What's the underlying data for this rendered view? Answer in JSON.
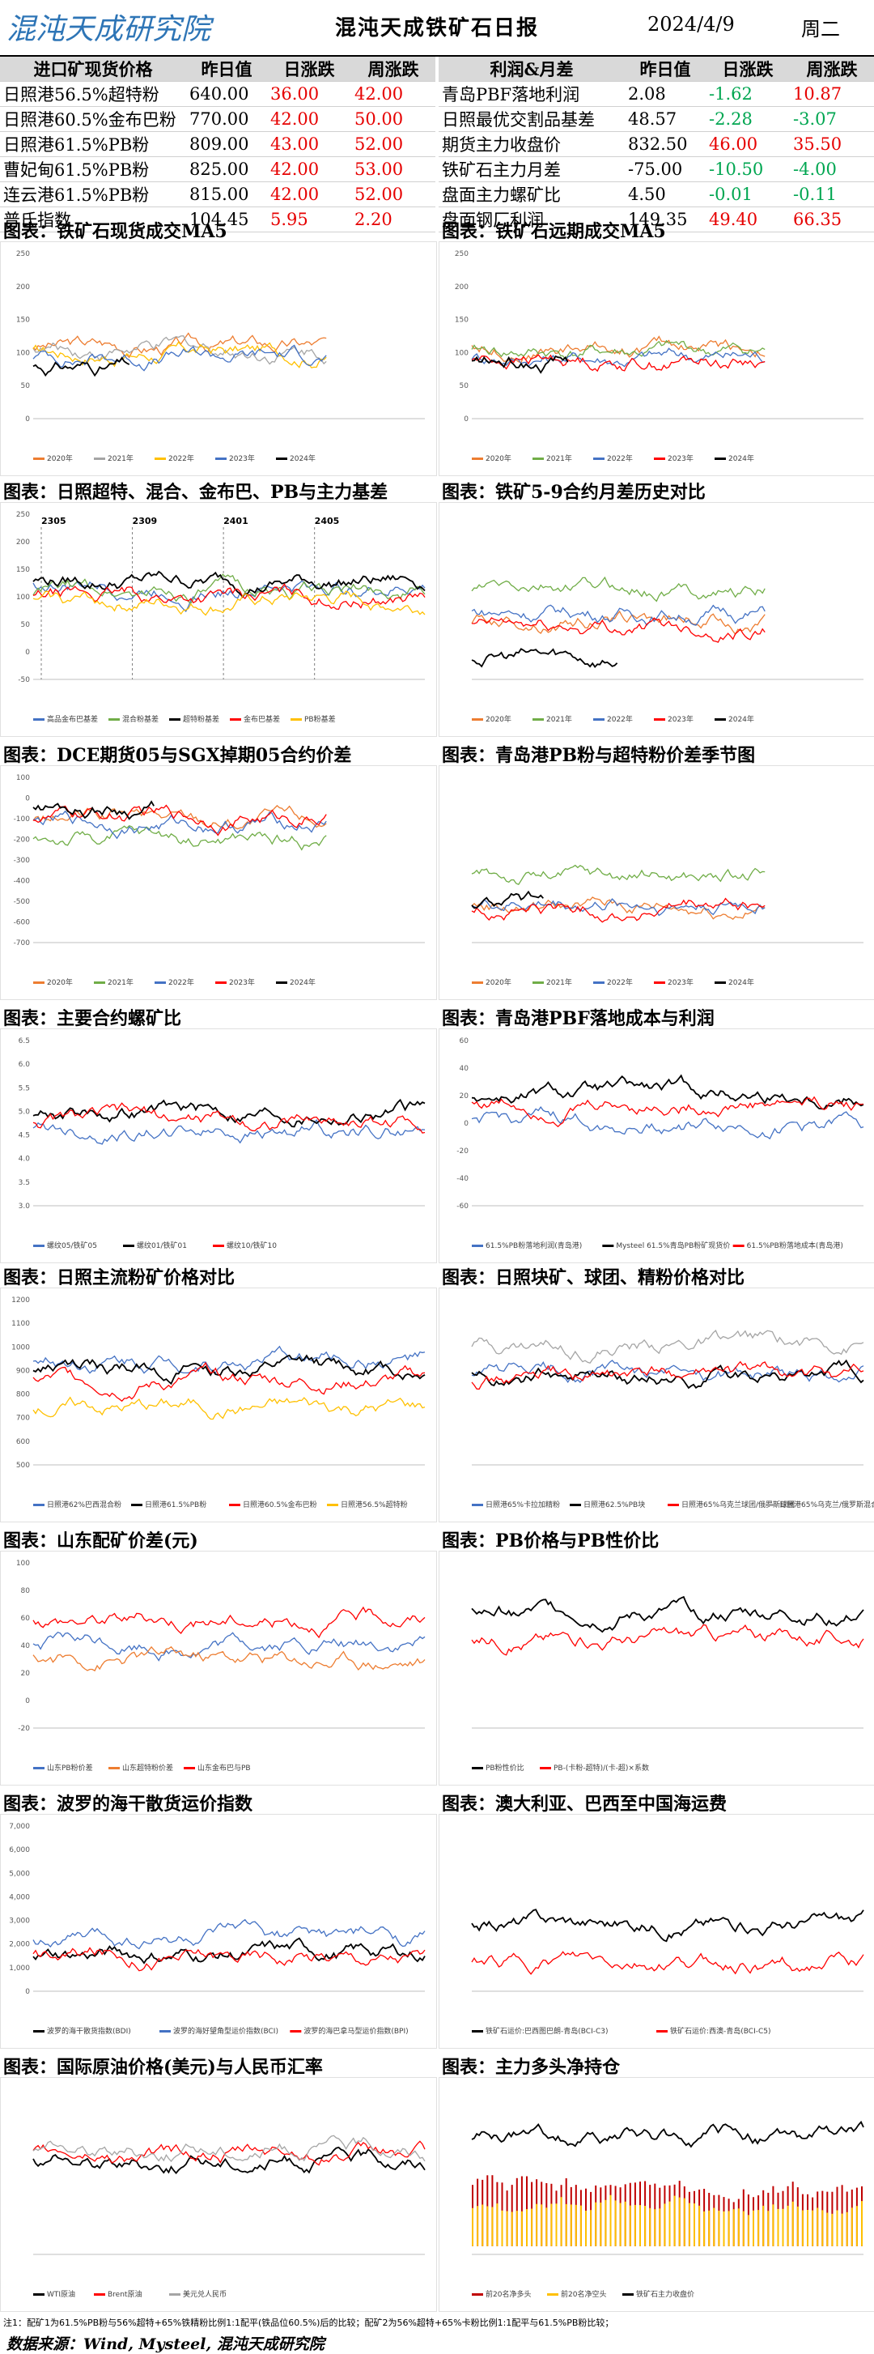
{
  "header": {
    "logo_text": "混沌天成研究院",
    "title": "混沌天成铁矿石日报",
    "date": "2024/4/9",
    "weekday": "周二"
  },
  "colors": {
    "up": "#e60000",
    "down": "#00a651",
    "header_bg": "#d9d9d9"
  },
  "left_table": {
    "headers": [
      "进口矿现货价格",
      "昨日值",
      "日涨跌",
      "周涨跌"
    ],
    "rows": [
      {
        "name": "日照港56.5%超特粉",
        "value": "640.00",
        "day": "36.00",
        "week": "42.00",
        "day_dir": "up",
        "week_dir": "up"
      },
      {
        "name": "日照港60.5%金布巴粉",
        "value": "770.00",
        "day": "42.00",
        "week": "50.00",
        "day_dir": "up",
        "week_dir": "up"
      },
      {
        "name": "日照港61.5%PB粉",
        "value": "809.00",
        "day": "43.00",
        "week": "52.00",
        "day_dir": "up",
        "week_dir": "up"
      },
      {
        "name": "曹妃甸61.5%PB粉",
        "value": "825.00",
        "day": "42.00",
        "week": "53.00",
        "day_dir": "up",
        "week_dir": "up"
      },
      {
        "name": "连云港61.5%PB粉",
        "value": "815.00",
        "day": "42.00",
        "week": "52.00",
        "day_dir": "up",
        "week_dir": "up"
      },
      {
        "name": "普氏指数",
        "value": "104.45",
        "day": "5.95",
        "week": "2.20",
        "day_dir": "up",
        "week_dir": "up"
      }
    ]
  },
  "right_table": {
    "headers": [
      "利润&月差",
      "昨日值",
      "日涨跌",
      "周涨跌"
    ],
    "rows": [
      {
        "name": "青岛PBF落地利润",
        "value": "2.08",
        "day": "-1.62",
        "week": "10.87",
        "day_dir": "down",
        "week_dir": "up"
      },
      {
        "name": "日照最优交割品基差",
        "value": "48.57",
        "day": "-2.28",
        "week": "-3.07",
        "day_dir": "down",
        "week_dir": "down"
      },
      {
        "name": "期货主力收盘价",
        "value": "832.50",
        "day": "46.00",
        "week": "35.50",
        "day_dir": "up",
        "week_dir": "up"
      },
      {
        "name": "铁矿石主力月差",
        "value": "-75.00",
        "day": "-10.50",
        "week": "-4.00",
        "day_dir": "down",
        "week_dir": "down"
      },
      {
        "name": "盘面主力螺矿比",
        "value": "4.50",
        "day": "-0.01",
        "week": "-0.11",
        "day_dir": "down",
        "week_dir": "down"
      },
      {
        "name": "盘面钢厂利润",
        "value": "149.35",
        "day": "49.40",
        "week": "66.35",
        "day_dir": "up",
        "week_dir": "up"
      }
    ]
  },
  "sections": [
    {
      "title": "图表：铁矿石现货成交MA5"
    },
    {
      "title": "图表：铁矿石远期成交MA5"
    },
    {
      "title": "图表：日照超特、混合、金布巴、PB与主力基差"
    },
    {
      "title": "图表：铁矿5-9合约月差历史对比"
    },
    {
      "title": "图表：DCE期货05与SGX掉期05合约价差"
    },
    {
      "title": "图表：青岛港PB粉与超特粉价差季节图"
    },
    {
      "title": "图表：主要合约螺矿比"
    },
    {
      "title": "图表：青岛港PBF落地成本与利润"
    },
    {
      "title": "图表：日照主流粉矿价格对比"
    },
    {
      "title": "图表：日照块矿、球团、精粉价格对比"
    },
    {
      "title": "图表：山东配矿价差(元)"
    },
    {
      "title": "图表：PB价格与PB性价比"
    },
    {
      "title": "图表：波罗的海干散货运价指数"
    },
    {
      "title": "图表：澳大利亚、巴西至中国海运费"
    },
    {
      "title": "图表：国际原油价格(美元)与人民币汇率"
    },
    {
      "title": "图表：主力多头净持仓"
    }
  ],
  "chart_data": [
    {
      "id": "c1",
      "type": "line",
      "ylim": [
        0,
        250
      ],
      "yticks": [
        "0",
        "50",
        "100",
        "150",
        "200",
        "250"
      ],
      "series": [
        {
          "name": "2020年",
          "color": "#ed7d31"
        },
        {
          "name": "2021年",
          "color": "#a5a5a5"
        },
        {
          "name": "2022年",
          "color": "#ffc000"
        },
        {
          "name": "2023年",
          "color": "#4472c4"
        },
        {
          "name": "2024年",
          "color": "#000000"
        }
      ],
      "seeds": [
        110,
        105,
        100,
        95,
        80
      ],
      "lens": [
        120,
        120,
        120,
        120,
        40
      ]
    },
    {
      "id": "c2",
      "type": "line",
      "ylim": [
        0,
        250
      ],
      "yticks": [
        "0",
        "50",
        "100",
        "150",
        "200",
        "250"
      ],
      "series": [
        {
          "name": "2020年",
          "color": "#ed7d31"
        },
        {
          "name": "2021年",
          "color": "#70ad47"
        },
        {
          "name": "2022年",
          "color": "#4472c4"
        },
        {
          "name": "2023年",
          "color": "#ff0000"
        },
        {
          "name": "2024年",
          "color": "#000000"
        }
      ],
      "seeds": [
        110,
        100,
        95,
        90,
        85
      ],
      "lens": [
        120,
        120,
        120,
        120,
        40
      ]
    },
    {
      "id": "c3",
      "type": "line",
      "ylim": [
        -50,
        250
      ],
      "yticks": [
        "-50",
        "0",
        "50",
        "100",
        "150",
        "200",
        "250"
      ],
      "annotations": [
        "2305",
        "2309",
        "2401",
        "2405"
      ],
      "series": [
        {
          "name": "高品金布巴基差",
          "color": "#4472c4"
        },
        {
          "name": "混合粉基差",
          "color": "#70ad47"
        },
        {
          "name": "超特粉基差",
          "color": "#000000"
        },
        {
          "name": "金布巴基差",
          "color": "#ff0000"
        },
        {
          "name": "PB粉基差",
          "color": "#ffc000"
        }
      ],
      "seeds": [
        120,
        110,
        130,
        100,
        90
      ],
      "lens": [
        160,
        160,
        160,
        160,
        160
      ]
    },
    {
      "id": "c4",
      "type": "line",
      "ylim": [
        -60,
        160
      ],
      "yticks": [],
      "series": [
        {
          "name": "2020年",
          "color": "#ed7d31"
        },
        {
          "name": "2021年",
          "color": "#70ad47"
        },
        {
          "name": "2022年",
          "color": "#4472c4"
        },
        {
          "name": "2023年",
          "color": "#ff0000"
        },
        {
          "name": "2024年",
          "color": "#000000"
        }
      ],
      "seeds": [
        20,
        60,
        30,
        10,
        -30
      ],
      "lens": [
        120,
        120,
        120,
        120,
        60
      ]
    },
    {
      "id": "c5",
      "type": "line",
      "ylim": [
        -700,
        100
      ],
      "yticks": [
        "100",
        "0",
        "-100",
        "-200",
        "-300",
        "-400",
        "-500",
        "-600",
        "-700"
      ],
      "series": [
        {
          "name": "2020年",
          "color": "#ed7d31"
        },
        {
          "name": "2021年",
          "color": "#70ad47"
        },
        {
          "name": "2022年",
          "color": "#4472c4"
        },
        {
          "name": "2023年",
          "color": "#ff0000"
        },
        {
          "name": "2024年",
          "color": "#000000"
        }
      ],
      "seeds": [
        -100,
        -200,
        -120,
        -90,
        -40
      ],
      "lens": [
        120,
        120,
        120,
        120,
        50
      ]
    },
    {
      "id": "c6",
      "type": "line",
      "ylim": [
        0,
        500
      ],
      "yticks": [],
      "series": [
        {
          "name": "2020年",
          "color": "#ed7d31"
        },
        {
          "name": "2021年",
          "color": "#70ad47"
        },
        {
          "name": "2022年",
          "color": "#4472c4"
        },
        {
          "name": "2023年",
          "color": "#ff0000"
        },
        {
          "name": "2024年",
          "color": "#000000"
        }
      ],
      "seeds": [
        110,
        200,
        120,
        100,
        110
      ],
      "lens": [
        120,
        120,
        120,
        120,
        30
      ]
    },
    {
      "id": "c7",
      "type": "line",
      "ylim": [
        3.0,
        6.5
      ],
      "yticks": [
        "3.0",
        "3.5",
        "4.0",
        "4.5",
        "5.0",
        "5.5",
        "6.0",
        "6.5"
      ],
      "series": [
        {
          "name": "螺纹05/铁矿05",
          "color": "#4472c4"
        },
        {
          "name": "螺纹01/铁矿01",
          "color": "#000000"
        },
        {
          "name": "螺纹10/铁矿10",
          "color": "#ff0000"
        }
      ],
      "seeds": [
        4.6,
        5.0,
        4.8
      ],
      "lens": [
        160,
        160,
        160
      ]
    },
    {
      "id": "c8",
      "type": "line",
      "ylim": [
        -60,
        60
      ],
      "yticks": [
        "60",
        "40",
        "20",
        "0",
        "-20",
        "-40",
        "-60"
      ],
      "series": [
        {
          "name": "61.5%PB粉落地利润(青岛港)",
          "color": "#4472c4"
        },
        {
          "name": "Mysteel 61.5%青岛PB粉矿现货价",
          "color": "#000000"
        },
        {
          "name": "61.5%PB粉落地成本(青岛港)",
          "color": "#ff0000"
        }
      ],
      "seeds": [
        0,
        20,
        15
      ],
      "lens": [
        160,
        160,
        160
      ]
    },
    {
      "id": "c9",
      "type": "line",
      "ylim": [
        500,
        1200
      ],
      "yticks": [
        "500",
        "600",
        "700",
        "800",
        "900",
        "1000",
        "1100",
        "1200"
      ],
      "series": [
        {
          "name": "日照港62%巴西混合粉",
          "color": "#4472c4"
        },
        {
          "name": "日照港61.5%PB粉",
          "color": "#000000"
        },
        {
          "name": "日照港60.5%金布巴粉",
          "color": "#ff0000"
        },
        {
          "name": "日照港56.5%超特粉",
          "color": "#ffc000"
        }
      ],
      "seeds": [
        950,
        900,
        860,
        750
      ],
      "lens": [
        160,
        160,
        160,
        160
      ]
    },
    {
      "id": "c10",
      "type": "line",
      "ylim": [
        500,
        1600
      ],
      "yticks": [],
      "series": [
        {
          "name": "日照港65%卡拉加精粉",
          "color": "#4472c4"
        },
        {
          "name": "日照港62.5%PB块",
          "color": "#000000"
        },
        {
          "name": "日照港65%乌克兰球团/俄罗斯球团",
          "color": "#ff0000"
        },
        {
          "name": "日照港65%乌克兰/俄罗斯混合粉",
          "color": "#a5a5a5"
        }
      ],
      "seeds": [
        1100,
        1100,
        1080,
        1300
      ],
      "lens": [
        160,
        160,
        160,
        160
      ]
    },
    {
      "id": "c11",
      "type": "line",
      "ylim": [
        -20,
        100
      ],
      "yticks": [
        "100",
        "80",
        "60",
        "40",
        "20",
        "0",
        "-20"
      ],
      "series": [
        {
          "name": "山东PB粉价差",
          "color": "#4472c4"
        },
        {
          "name": "山东超特粉价差",
          "color": "#ed7d31"
        },
        {
          "name": "山东金布巴与PB",
          "color": "#ff0000"
        }
      ],
      "seeds": [
        40,
        30,
        60
      ],
      "lens": [
        160,
        160,
        160
      ]
    },
    {
      "id": "c12",
      "type": "line",
      "ylim": [
        0,
        100
      ],
      "yticks": [],
      "series": [
        {
          "name": "PB粉性价比",
          "color": "#000000"
        },
        {
          "name": "PB-(卡粉-超特)/(卡-超)×系数",
          "color": "#ff0000"
        }
      ],
      "seeds": [
        70,
        55
      ],
      "lens": [
        160,
        160
      ]
    },
    {
      "id": "c13",
      "type": "line",
      "ylim": [
        0,
        7000
      ],
      "yticks": [
        "0",
        "1,000",
        "2,000",
        "3,000",
        "4,000",
        "5,000",
        "6,000",
        "7,000"
      ],
      "series": [
        {
          "name": "波罗的海干散货指数(BDI)",
          "color": "#000000"
        },
        {
          "name": "波罗的海好望角型运价指数(BCI)",
          "color": "#4472c4"
        },
        {
          "name": "波罗的海巴拿马型运价指数(BPI)",
          "color": "#ff0000"
        }
      ],
      "seeds": [
        1600,
        2200,
        1500
      ],
      "lens": [
        160,
        160,
        160
      ]
    },
    {
      "id": "c14",
      "type": "line",
      "ylim": [
        0,
        60
      ],
      "yticks": [],
      "series": [
        {
          "name": "铁矿石运价:巴西图巴朗-青岛(BCI-C3)",
          "color": "#000000"
        },
        {
          "name": "铁矿石运价:西澳-青岛(BCI-C5)",
          "color": "#ff0000"
        }
      ],
      "seeds": [
        25,
        10
      ],
      "lens": [
        160,
        160
      ]
    },
    {
      "id": "c15",
      "type": "line",
      "ylim": [
        0,
        140
      ],
      "yticks": [],
      "series": [
        {
          "name": "WTI原油",
          "color": "#000000"
        },
        {
          "name": "Brent原油",
          "color": "#ff0000"
        },
        {
          "name": "美元兑人民币",
          "color": "#a5a5a5"
        }
      ],
      "seeds": [
        80,
        85,
        90
      ],
      "lens": [
        160,
        160,
        160
      ]
    },
    {
      "id": "c16",
      "type": "bar_line",
      "ylim": [
        0,
        100
      ],
      "yticks": [],
      "series": [
        {
          "name": "前20名净多头",
          "color": "#c00000"
        },
        {
          "name": "前20名净空头",
          "color": "#ffc000"
        },
        {
          "name": "铁矿石主力收盘价",
          "color": "#000000"
        }
      ],
      "seeds": [
        40,
        30,
        70
      ],
      "lens": [
        160,
        160,
        160
      ]
    }
  ],
  "footnote": "注1：配矿1为61.5%PB粉与56%超特+65%铁精粉比例1:1配平(铁品位60.5%)后的比较；配矿2为56%超特+65%卡粉比例1:1配平与61.5%PB粉比较；",
  "source": "数据来源：Wind, Mysteel, 混沌天成研究院"
}
